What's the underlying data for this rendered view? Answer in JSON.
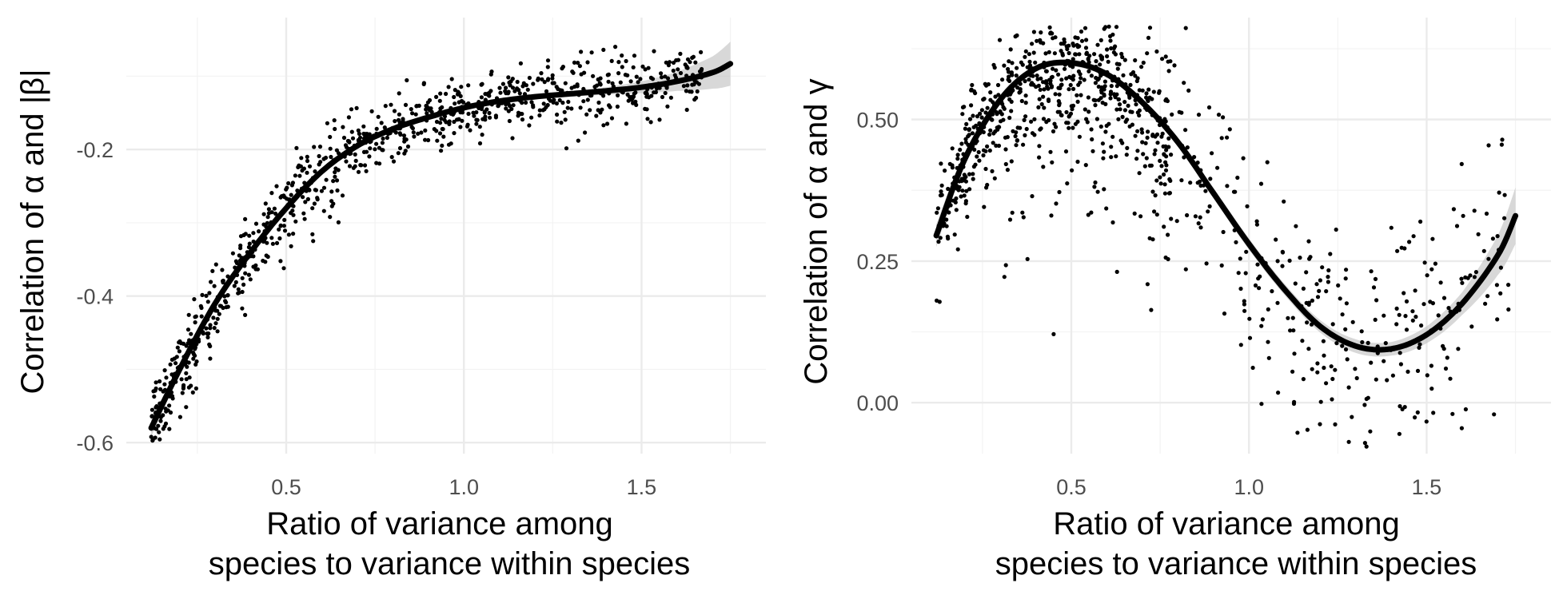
{
  "chart_data": [
    {
      "type": "scatter",
      "xlabel": [
        "Ratio of variance among",
        "species to variance within species"
      ],
      "ylabel": "Correlation of α and |β|",
      "xlim": [
        0.05,
        1.85
      ],
      "ylim": [
        -0.615,
        -0.02
      ],
      "x_ticks": [
        0.5,
        1.0,
        1.5
      ],
      "x_tick_labels": [
        "0.5",
        "1.0",
        "1.5"
      ],
      "y_ticks": [
        -0.6,
        -0.4,
        -0.2
      ],
      "y_tick_labels": [
        "-0.6",
        "-0.4",
        "-0.2"
      ],
      "grid": true,
      "points_approx_count": 900,
      "fit": {
        "method": "smooth",
        "x": [
          0.12,
          0.2,
          0.3,
          0.4,
          0.5,
          0.6,
          0.7,
          0.8,
          0.9,
          1.0,
          1.1,
          1.2,
          1.3,
          1.4,
          1.5,
          1.6,
          1.7,
          1.75
        ],
        "y": [
          -0.58,
          -0.5,
          -0.41,
          -0.34,
          -0.28,
          -0.23,
          -0.195,
          -0.172,
          -0.156,
          -0.143,
          -0.134,
          -0.128,
          -0.124,
          -0.12,
          -0.115,
          -0.107,
          -0.095,
          -0.083
        ],
        "ci_halfwidth": [
          0.012,
          0.006,
          0.004,
          0.003,
          0.003,
          0.003,
          0.003,
          0.003,
          0.003,
          0.003,
          0.003,
          0.003,
          0.004,
          0.005,
          0.008,
          0.013,
          0.022,
          0.03
        ]
      },
      "scatter_spread": [
        {
          "x_max": 0.45,
          "sd": 0.025
        },
        {
          "x_max": 0.7,
          "sd": 0.03
        },
        {
          "x_max": 1.85,
          "sd": 0.022
        }
      ]
    },
    {
      "type": "scatter",
      "xlabel": [
        "Ratio of variance among",
        "species to variance within species"
      ],
      "ylabel": "Correlation of α and γ",
      "xlim": [
        0.05,
        1.85
      ],
      "ylim": [
        -0.09,
        0.68
      ],
      "x_ticks": [
        0.5,
        1.0,
        1.5
      ],
      "x_tick_labels": [
        "0.5",
        "1.0",
        "1.5"
      ],
      "y_ticks": [
        0.0,
        0.25,
        0.5
      ],
      "y_tick_labels": [
        "0.00",
        "0.25",
        "0.50"
      ],
      "grid": true,
      "points_approx_count": 1000,
      "fit": {
        "method": "smooth",
        "x": [
          0.12,
          0.2,
          0.3,
          0.4,
          0.5,
          0.6,
          0.7,
          0.8,
          0.9,
          1.0,
          1.1,
          1.2,
          1.3,
          1.4,
          1.5,
          1.6,
          1.7,
          1.75
        ],
        "y": [
          0.295,
          0.43,
          0.535,
          0.59,
          0.6,
          0.58,
          0.53,
          0.46,
          0.37,
          0.28,
          0.2,
          0.135,
          0.1,
          0.095,
          0.12,
          0.175,
          0.26,
          0.33
        ],
        "ci_halfwidth": [
          0.02,
          0.012,
          0.008,
          0.006,
          0.006,
          0.006,
          0.007,
          0.008,
          0.009,
          0.01,
          0.01,
          0.011,
          0.012,
          0.012,
          0.015,
          0.02,
          0.035,
          0.05
        ]
      },
      "scatter_spread": [
        {
          "x_max": 0.35,
          "sd": 0.05
        },
        {
          "x_max": 0.7,
          "sd": 0.06
        },
        {
          "x_max": 0.9,
          "sd": 0.08
        },
        {
          "x_max": 1.85,
          "sd": 0.11
        }
      ]
    }
  ]
}
